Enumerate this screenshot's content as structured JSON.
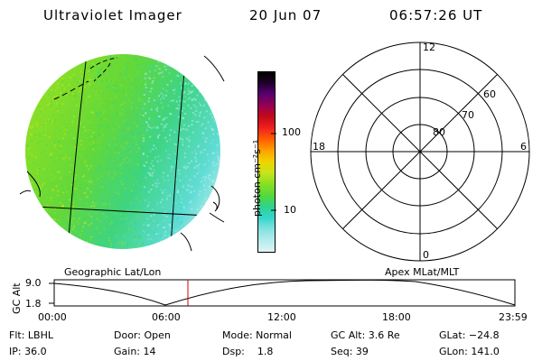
{
  "header": {
    "instrument": "Ultraviolet Imager",
    "date": "20 Jun 07",
    "time": "06:57:26 UT"
  },
  "panels": {
    "left_label": "Geographic Lat/Lon",
    "right_label": "Apex MLat/MLT"
  },
  "colorbar": {
    "unit_label": "photon cm⁻²s⁻¹",
    "tick_100": "100",
    "tick_10": "10",
    "colors": [
      "#e0f4f4",
      "#b9ecec",
      "#7fe2e0",
      "#32d6cc",
      "#2fd28f",
      "#52d83e",
      "#8ae023",
      "#c7e41a",
      "#efd400",
      "#ffa400",
      "#ff5a00",
      "#ef2020",
      "#c40a18",
      "#9a0050",
      "#580070",
      "#200028",
      "#000000"
    ]
  },
  "polar": {
    "mlt_labels": {
      "top": "12",
      "bottom": "0",
      "left": "18",
      "right": "6"
    },
    "lat_labels": [
      "80",
      "70",
      "60"
    ]
  },
  "altitude_plot": {
    "axis_label": "GC Alt",
    "y_max_label": "9.0",
    "y_min_label": "1.8",
    "x_ticks": [
      "00:00",
      "06:00",
      "12:00",
      "18:00",
      "23:59"
    ],
    "current_time_color": "#d00000"
  },
  "status": {
    "row1": [
      "Flt: LBHL",
      "Door: Open",
      "Mode: Normal",
      "GC Alt: 3.6 Re",
      "GLat: −24.8"
    ],
    "row2": [
      "IP: 36.0",
      "Gain: 14",
      "Dsp:    1.8",
      "Seq: 39",
      "GLon: 141.0"
    ]
  }
}
